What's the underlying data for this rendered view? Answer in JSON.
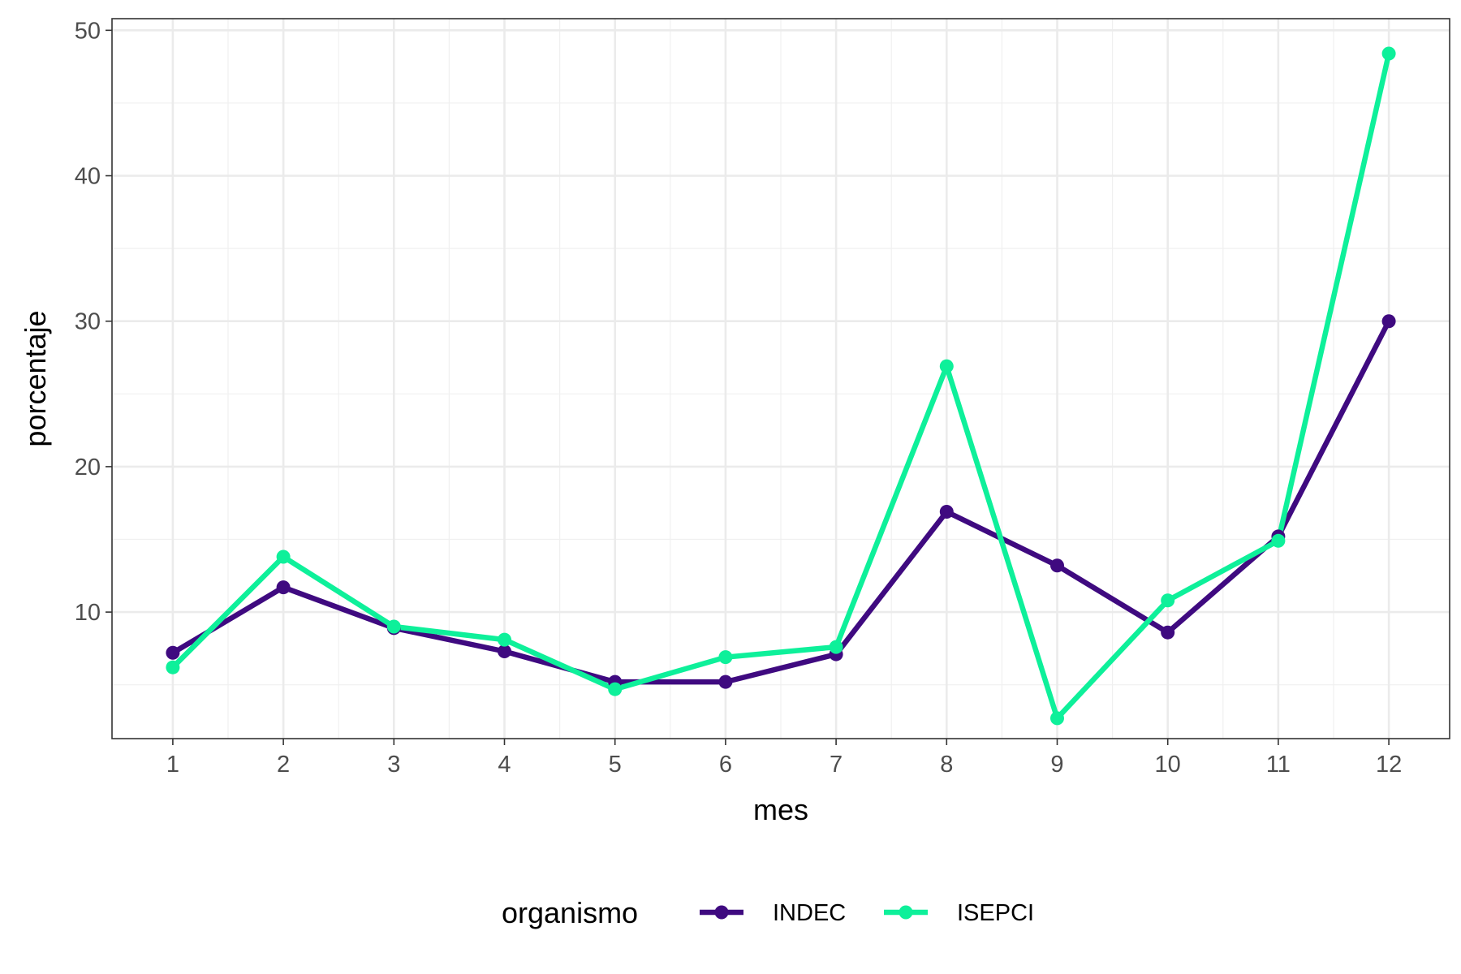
{
  "chart_data": {
    "type": "line",
    "xlabel": "mes",
    "ylabel": "porcentaje",
    "x": [
      1,
      2,
      3,
      4,
      5,
      6,
      7,
      8,
      9,
      10,
      11,
      12
    ],
    "xlim": [
      0.45,
      12.55
    ],
    "ylim": [
      1.3,
      50.8
    ],
    "y_ticks": [
      10,
      20,
      30,
      40,
      50
    ],
    "grid": true,
    "legend": {
      "title": "organismo",
      "position": "bottom"
    },
    "series": [
      {
        "name": "INDEC",
        "color": "#3f0a80",
        "values": [
          7.2,
          11.7,
          8.9,
          7.3,
          5.2,
          5.2,
          7.1,
          16.9,
          13.2,
          8.6,
          15.2,
          30.0
        ]
      },
      {
        "name": "ISEPCI",
        "color": "#0ef09a",
        "values": [
          6.2,
          13.8,
          9.0,
          8.1,
          4.7,
          6.9,
          7.6,
          26.9,
          2.7,
          10.8,
          14.9,
          48.4
        ]
      }
    ]
  }
}
